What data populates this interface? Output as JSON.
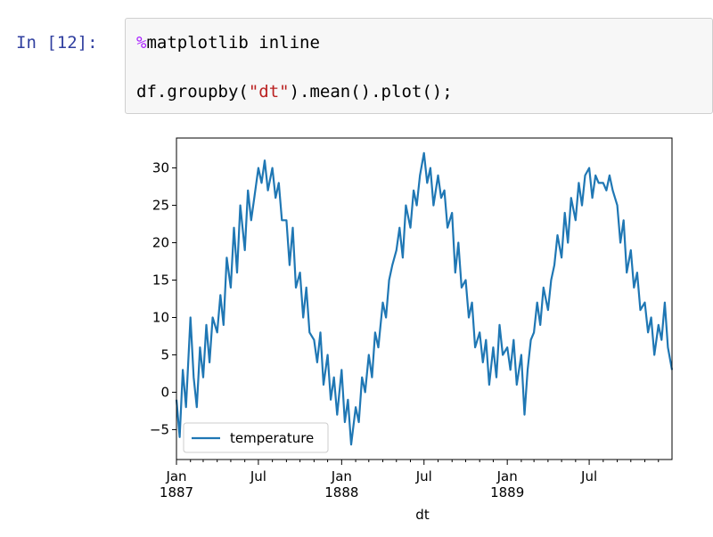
{
  "cell": {
    "prompt": "In [12]:",
    "line1_magic_symbol": "%",
    "line1_rest": "matplotlib inline",
    "line2_pre": "df.groupby(",
    "line2_str": "\"dt\"",
    "line2_post": ").mean().plot();"
  },
  "chart_data": {
    "type": "line",
    "xlabel": "dt",
    "ylabel": "",
    "ylim": [
      -9,
      34
    ],
    "xlim": [
      "1887-01-01",
      "1889-12-31"
    ],
    "yticks": [
      -5,
      0,
      5,
      10,
      15,
      20,
      25,
      30
    ],
    "ytick_labels": [
      "−5",
      "0",
      "5",
      "10",
      "15",
      "20",
      "25",
      "30"
    ],
    "xticks": [
      {
        "date": "1887-01-01",
        "label": "Jan",
        "sub": "1887"
      },
      {
        "date": "1887-07-01",
        "label": "Jul",
        "sub": ""
      },
      {
        "date": "1888-01-01",
        "label": "Jan",
        "sub": "1888"
      },
      {
        "date": "1888-07-01",
        "label": "Jul",
        "sub": ""
      },
      {
        "date": "1889-01-01",
        "label": "Jan",
        "sub": "1889"
      },
      {
        "date": "1889-07-01",
        "label": "Jul",
        "sub": ""
      }
    ],
    "legend_position": "lower-left",
    "series": [
      {
        "name": "temperature",
        "color": "#1f77b4",
        "x": [
          "1887-01-01",
          "1887-01-08",
          "1887-01-15",
          "1887-01-22",
          "1887-02-01",
          "1887-02-08",
          "1887-02-15",
          "1887-02-22",
          "1887-03-01",
          "1887-03-08",
          "1887-03-15",
          "1887-03-22",
          "1887-04-01",
          "1887-04-08",
          "1887-04-15",
          "1887-04-22",
          "1887-05-01",
          "1887-05-08",
          "1887-05-15",
          "1887-05-22",
          "1887-06-01",
          "1887-06-08",
          "1887-06-15",
          "1887-06-22",
          "1887-07-01",
          "1887-07-08",
          "1887-07-15",
          "1887-07-22",
          "1887-08-01",
          "1887-08-08",
          "1887-08-15",
          "1887-08-22",
          "1887-09-01",
          "1887-09-08",
          "1887-09-15",
          "1887-09-22",
          "1887-10-01",
          "1887-10-08",
          "1887-10-15",
          "1887-10-22",
          "1887-11-01",
          "1887-11-08",
          "1887-11-15",
          "1887-11-22",
          "1887-12-01",
          "1887-12-08",
          "1887-12-15",
          "1887-12-22",
          "1888-01-01",
          "1888-01-08",
          "1888-01-15",
          "1888-01-22",
          "1888-02-01",
          "1888-02-08",
          "1888-02-15",
          "1888-02-22",
          "1888-03-01",
          "1888-03-08",
          "1888-03-15",
          "1888-03-22",
          "1888-04-01",
          "1888-04-08",
          "1888-04-15",
          "1888-04-22",
          "1888-05-01",
          "1888-05-08",
          "1888-05-15",
          "1888-05-22",
          "1888-06-01",
          "1888-06-08",
          "1888-06-15",
          "1888-06-22",
          "1888-07-01",
          "1888-07-08",
          "1888-07-15",
          "1888-07-22",
          "1888-08-01",
          "1888-08-08",
          "1888-08-15",
          "1888-08-22",
          "1888-09-01",
          "1888-09-08",
          "1888-09-15",
          "1888-09-22",
          "1888-10-01",
          "1888-10-08",
          "1888-10-15",
          "1888-10-22",
          "1888-11-01",
          "1888-11-08",
          "1888-11-15",
          "1888-11-22",
          "1888-12-01",
          "1888-12-08",
          "1888-12-15",
          "1888-12-22",
          "1889-01-01",
          "1889-01-08",
          "1889-01-15",
          "1889-01-22",
          "1889-02-01",
          "1889-02-08",
          "1889-02-15",
          "1889-02-22",
          "1889-03-01",
          "1889-03-08",
          "1889-03-15",
          "1889-03-22",
          "1889-04-01",
          "1889-04-08",
          "1889-04-15",
          "1889-04-22",
          "1889-05-01",
          "1889-05-08",
          "1889-05-15",
          "1889-05-22",
          "1889-06-01",
          "1889-06-08",
          "1889-06-15",
          "1889-06-22",
          "1889-07-01",
          "1889-07-08",
          "1889-07-15",
          "1889-07-22",
          "1889-08-01",
          "1889-08-08",
          "1889-08-15",
          "1889-08-22",
          "1889-09-01",
          "1889-09-08",
          "1889-09-15",
          "1889-09-22",
          "1889-10-01",
          "1889-10-08",
          "1889-10-15",
          "1889-10-22",
          "1889-11-01",
          "1889-11-08",
          "1889-11-15",
          "1889-11-22",
          "1889-12-01",
          "1889-12-08",
          "1889-12-15",
          "1889-12-22",
          "1889-12-31"
        ],
        "values": [
          -1,
          -6,
          3,
          -2,
          10,
          2,
          -2,
          6,
          2,
          9,
          4,
          10,
          8,
          13,
          9,
          18,
          14,
          22,
          16,
          25,
          19,
          27,
          23,
          26,
          30,
          28,
          31,
          27,
          30,
          26,
          28,
          23,
          23,
          17,
          22,
          14,
          16,
          10,
          14,
          8,
          7,
          4,
          8,
          1,
          5,
          -1,
          2,
          -3,
          3,
          -4,
          -1,
          -7,
          -2,
          -4,
          2,
          0,
          5,
          2,
          8,
          6,
          12,
          10,
          15,
          17,
          19,
          22,
          18,
          25,
          22,
          27,
          25,
          29,
          32,
          28,
          30,
          25,
          29,
          26,
          27,
          22,
          24,
          16,
          20,
          14,
          15,
          10,
          12,
          6,
          8,
          4,
          7,
          1,
          6,
          2,
          9,
          5,
          6,
          3,
          7,
          1,
          5,
          -3,
          3,
          7,
          8,
          12,
          9,
          14,
          11,
          15,
          17,
          21,
          18,
          24,
          20,
          26,
          23,
          28,
          25,
          29,
          30,
          26,
          29,
          28,
          28,
          27,
          29,
          27,
          25,
          20,
          23,
          16,
          19,
          14,
          16,
          11,
          12,
          8,
          10,
          5,
          9,
          7,
          12,
          6,
          3
        ]
      }
    ]
  }
}
